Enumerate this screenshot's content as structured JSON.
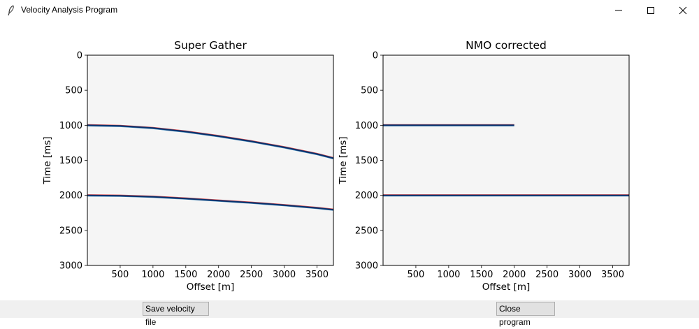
{
  "window": {
    "title": "Velocity Analysis Program",
    "icon": "feather-icon"
  },
  "window_controls": [
    "minimize-icon",
    "maximize-icon",
    "close-icon"
  ],
  "buttons": {
    "save": "Save velocity file",
    "close": "Close program"
  },
  "colors": {
    "panel_bg": "#f5f5f5",
    "event": "#08306b",
    "accent_pos": "#d62728",
    "accent_neg": "#1f77b4",
    "button_bar": "#f0f0f0"
  },
  "chart_data": [
    {
      "type": "line",
      "title": "Super Gather",
      "xlabel": "Offset [m]",
      "ylabel": "Time [ms]",
      "xlim": [
        0,
        3750
      ],
      "ylim": [
        3000,
        0
      ],
      "xticks": [
        500,
        1000,
        1500,
        2000,
        2500,
        3000,
        3500
      ],
      "yticks": [
        0,
        500,
        1000,
        1500,
        2000,
        2500,
        3000
      ],
      "series": [
        {
          "x": [
            0,
            500,
            1000,
            1500,
            2000,
            2500,
            3000,
            3500,
            3750
          ],
          "y": [
            1000,
            1010,
            1040,
            1090,
            1155,
            1230,
            1315,
            1410,
            1470
          ]
        },
        {
          "x": [
            0,
            500,
            1000,
            1500,
            2000,
            2500,
            3000,
            3500,
            3750
          ],
          "y": [
            2000,
            2005,
            2020,
            2045,
            2075,
            2105,
            2140,
            2180,
            2205
          ]
        }
      ]
    },
    {
      "type": "line",
      "title": "NMO corrected",
      "xlabel": "Offset [m]",
      "ylabel": "Time [ms]",
      "xlim": [
        0,
        3750
      ],
      "ylim": [
        3000,
        0
      ],
      "xticks": [
        500,
        1000,
        1500,
        2000,
        2500,
        3000,
        3500
      ],
      "yticks": [
        0,
        500,
        1000,
        1500,
        2000,
        2500,
        3000
      ],
      "series": [
        {
          "x": [
            0,
            2000
          ],
          "y": [
            1000,
            1000
          ]
        },
        {
          "x": [
            0,
            3750
          ],
          "y": [
            2000,
            2000
          ]
        }
      ]
    }
  ]
}
